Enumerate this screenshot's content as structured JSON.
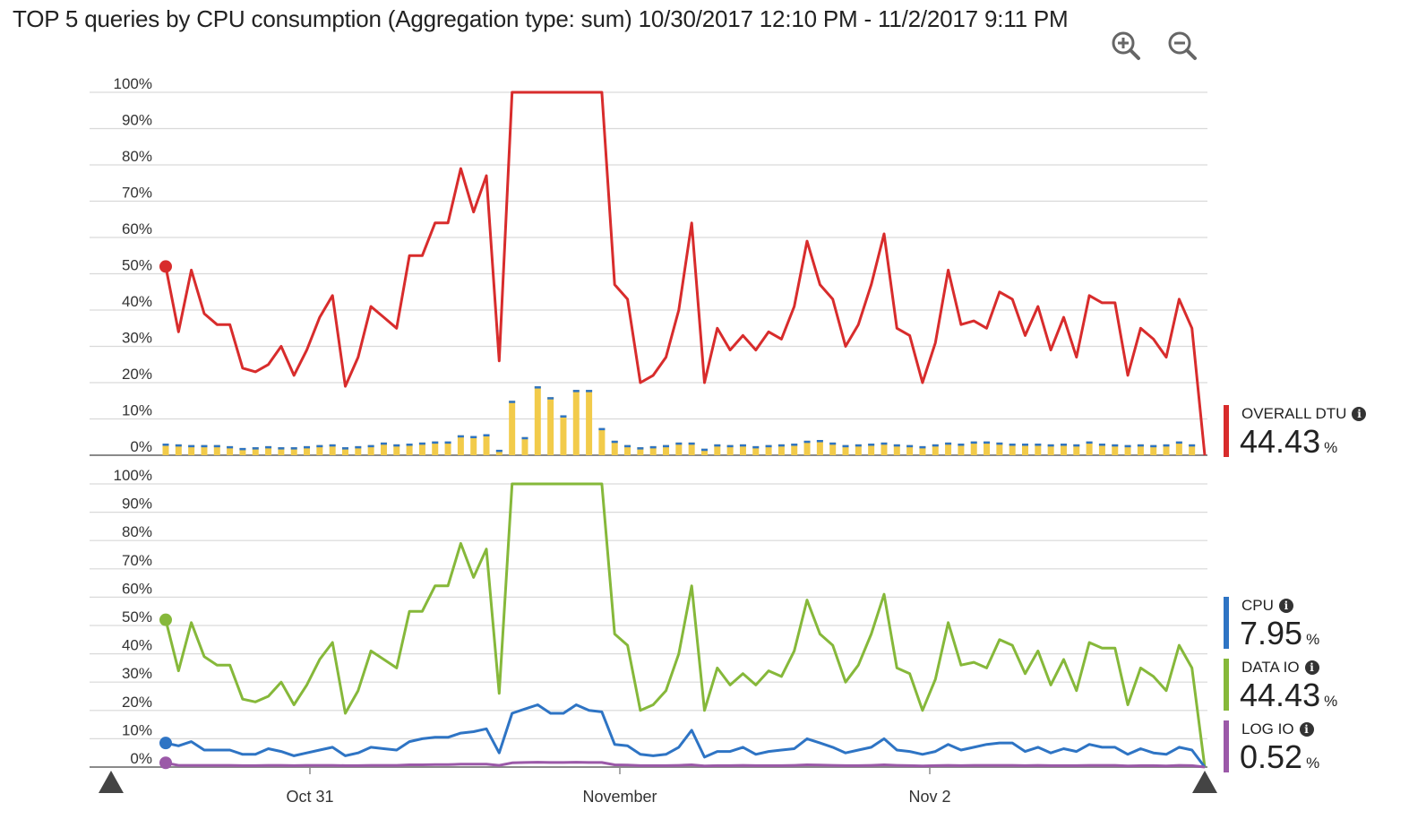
{
  "title": "TOP 5 queries by CPU consumption (Aggregation type: sum) 10/30/2017 12:10 PM - 11/2/2017 9:11 PM",
  "toolbar": {
    "zoom_in_icon": "zoom-in-icon",
    "zoom_out_icon": "zoom-out-icon"
  },
  "colors": {
    "overall_dtu": "#d82c2c",
    "cpu": "#2e74c4",
    "data_io": "#86b83a",
    "log_io": "#9b59a8",
    "bar_fill": "#f2cb4a",
    "bar_cap": "#2e74c4",
    "grid": "#d9d9d9"
  },
  "legend": {
    "overall_dtu": {
      "label": "OVERALL DTU",
      "value": "44.43",
      "unit": "%"
    },
    "cpu": {
      "label": "CPU",
      "value": "7.95",
      "unit": "%"
    },
    "data_io": {
      "label": "DATA IO",
      "value": "44.43",
      "unit": "%"
    },
    "log_io": {
      "label": "LOG IO",
      "value": "0.52",
      "unit": "%"
    }
  },
  "chart_data": [
    {
      "type": "line",
      "panel": "top",
      "title": "TOP 5 queries by CPU consumption (Aggregation type: sum) 10/30/2017 12:10 PM - 11/2/2017 9:11 PM",
      "x_ticks": [
        "Oct 31",
        "November",
        "Nov 2"
      ],
      "y_ticks": [
        "100%",
        "90%",
        "80%",
        "70%",
        "60%",
        "50%",
        "40%",
        "30%",
        "20%",
        "10%",
        "0%"
      ],
      "ylim": [
        0,
        100
      ],
      "grid": true,
      "legend_position": "right",
      "series": [
        {
          "name": "OVERALL DTU",
          "values": [
            52,
            34,
            51,
            39,
            36,
            36,
            24,
            23,
            25,
            30,
            22,
            29,
            38,
            44,
            19,
            27,
            41,
            38,
            35,
            55,
            55,
            64,
            64,
            79,
            67,
            77,
            26,
            100,
            100,
            100,
            100,
            100,
            100,
            100,
            100,
            47,
            43,
            20,
            22,
            27,
            40,
            64,
            20,
            35,
            29,
            33,
            29,
            34,
            32,
            41,
            59,
            47,
            43,
            30,
            36,
            47,
            61,
            35,
            33,
            20,
            31,
            51,
            36,
            37,
            35,
            45,
            43,
            33,
            41,
            29,
            38,
            27,
            44,
            42,
            42,
            22,
            35,
            32,
            27,
            43,
            35,
            0
          ]
        },
        {
          "name": "Top queries (bars)",
          "type": "bar",
          "values": [
            3.2,
            3,
            2.8,
            2.8,
            2.8,
            2.5,
            2,
            2.2,
            2.5,
            2.2,
            2.2,
            2.5,
            2.8,
            3,
            2.2,
            2.5,
            2.8,
            3.5,
            3,
            3.2,
            3.5,
            3.8,
            3.8,
            5.5,
            5.3,
            5.8,
            1.5,
            15,
            5,
            19,
            16,
            11,
            18,
            18,
            7.5,
            4,
            2.8,
            2.2,
            2.5,
            2.8,
            3.5,
            3.5,
            1.8,
            3,
            2.8,
            3,
            2.5,
            2.8,
            3,
            3.2,
            4,
            4.2,
            3.5,
            2.8,
            3,
            3.2,
            3.5,
            3,
            2.8,
            2.5,
            3,
            3.5,
            3.2,
            3.8,
            3.8,
            3.5,
            3.2,
            3.2,
            3.2,
            3,
            3.2,
            3,
            3.8,
            3.2,
            3,
            2.8,
            3,
            2.8,
            3,
            3.8,
            3,
            0
          ]
        }
      ]
    },
    {
      "type": "line",
      "panel": "bottom",
      "x_ticks": [
        "Oct 31",
        "November",
        "Nov 2"
      ],
      "y_ticks": [
        "100%",
        "90%",
        "80%",
        "70%",
        "60%",
        "50%",
        "40%",
        "30%",
        "20%",
        "10%",
        "0%"
      ],
      "ylim": [
        0,
        100
      ],
      "grid": true,
      "legend_position": "right",
      "series": [
        {
          "name": "DATA IO",
          "values": [
            52,
            34,
            51,
            39,
            36,
            36,
            24,
            23,
            25,
            30,
            22,
            29,
            38,
            44,
            19,
            27,
            41,
            38,
            35,
            55,
            55,
            64,
            64,
            79,
            67,
            77,
            26,
            100,
            100,
            100,
            100,
            100,
            100,
            100,
            100,
            47,
            43,
            20,
            22,
            27,
            40,
            64,
            20,
            35,
            29,
            33,
            29,
            34,
            32,
            41,
            59,
            47,
            43,
            30,
            36,
            47,
            61,
            35,
            33,
            20,
            31,
            51,
            36,
            37,
            35,
            45,
            43,
            33,
            41,
            29,
            38,
            27,
            44,
            42,
            42,
            22,
            35,
            32,
            27,
            43,
            35,
            0
          ]
        },
        {
          "name": "CPU",
          "values": [
            8.5,
            7.5,
            9,
            6,
            6,
            6,
            4.5,
            4.5,
            6.5,
            5.5,
            4,
            5,
            6,
            7,
            4,
            5,
            7,
            6.5,
            6,
            9,
            10,
            10.5,
            10.5,
            12,
            12.5,
            13.5,
            5,
            19,
            20.5,
            22,
            19,
            19,
            22,
            20,
            19.5,
            8,
            7.5,
            4.5,
            4,
            4.5,
            7,
            13,
            3.5,
            5.5,
            5.5,
            7,
            4.5,
            5.5,
            6,
            6.5,
            10,
            8.5,
            7,
            5,
            6,
            7,
            10,
            6,
            5.5,
            4.5,
            5.5,
            8,
            6,
            7,
            8,
            8.5,
            8.5,
            5.5,
            7,
            5,
            6.5,
            5.5,
            8,
            7,
            7,
            4.5,
            6.5,
            5,
            4.5,
            7,
            6,
            0
          ]
        },
        {
          "name": "LOG IO",
          "values": [
            1.5,
            0.6,
            0.6,
            0.6,
            0.6,
            0.6,
            0.5,
            0.5,
            0.6,
            0.6,
            0.5,
            0.6,
            0.6,
            0.6,
            0.5,
            0.5,
            0.6,
            0.6,
            0.6,
            0.8,
            0.8,
            0.9,
            0.9,
            1,
            1,
            1,
            0.6,
            1.5,
            1.6,
            1.7,
            1.6,
            1.6,
            1.7,
            1.6,
            1.6,
            0.8,
            0.7,
            0.5,
            0.5,
            0.5,
            0.6,
            0.8,
            0.4,
            0.5,
            0.5,
            0.6,
            0.5,
            0.5,
            0.5,
            0.6,
            0.8,
            0.7,
            0.6,
            0.5,
            0.5,
            0.6,
            0.8,
            0.6,
            0.5,
            0.4,
            0.5,
            0.6,
            0.5,
            0.6,
            0.6,
            0.6,
            0.6,
            0.5,
            0.6,
            0.5,
            0.5,
            0.5,
            0.6,
            0.6,
            0.6,
            0.4,
            0.5,
            0.5,
            0.4,
            0.6,
            0.5,
            0
          ]
        }
      ]
    }
  ]
}
